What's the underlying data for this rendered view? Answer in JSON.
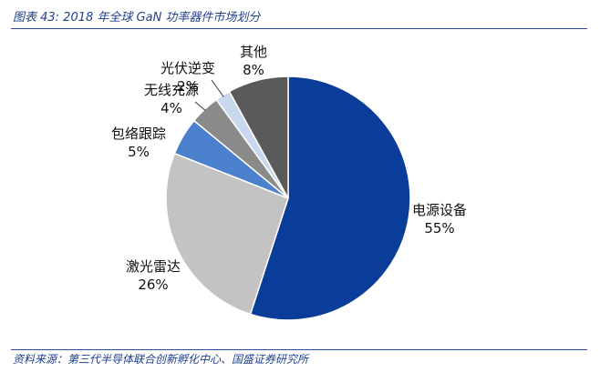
{
  "figure": {
    "title": "图表 43: 2018 年全球 GaN 功率器件市场划分",
    "source": "资料来源：第三代半导体联合创新孵化中心、国盛证券研究所"
  },
  "chart_data": {
    "type": "pie",
    "title": "",
    "slices": [
      {
        "label": "电源设备",
        "value": 55,
        "value_label": "55%",
        "color": "#0a3d99"
      },
      {
        "label": "激光雷达",
        "value": 26,
        "value_label": "26%",
        "color": "#c3c3c3"
      },
      {
        "label": "包络跟踪",
        "value": 5,
        "value_label": "5%",
        "color": "#4a80cc"
      },
      {
        "label": "无线充源",
        "value": 4,
        "value_label": "4%",
        "color": "#8a8a8a"
      },
      {
        "label": "光伏逆变",
        "value": 2,
        "value_label": "2%",
        "color": "#c8d8ee"
      },
      {
        "label": "其他",
        "value": 8,
        "value_label": "8%",
        "color": "#5a5a5a"
      }
    ],
    "legend": "none",
    "labels": "outside, category and percent"
  }
}
